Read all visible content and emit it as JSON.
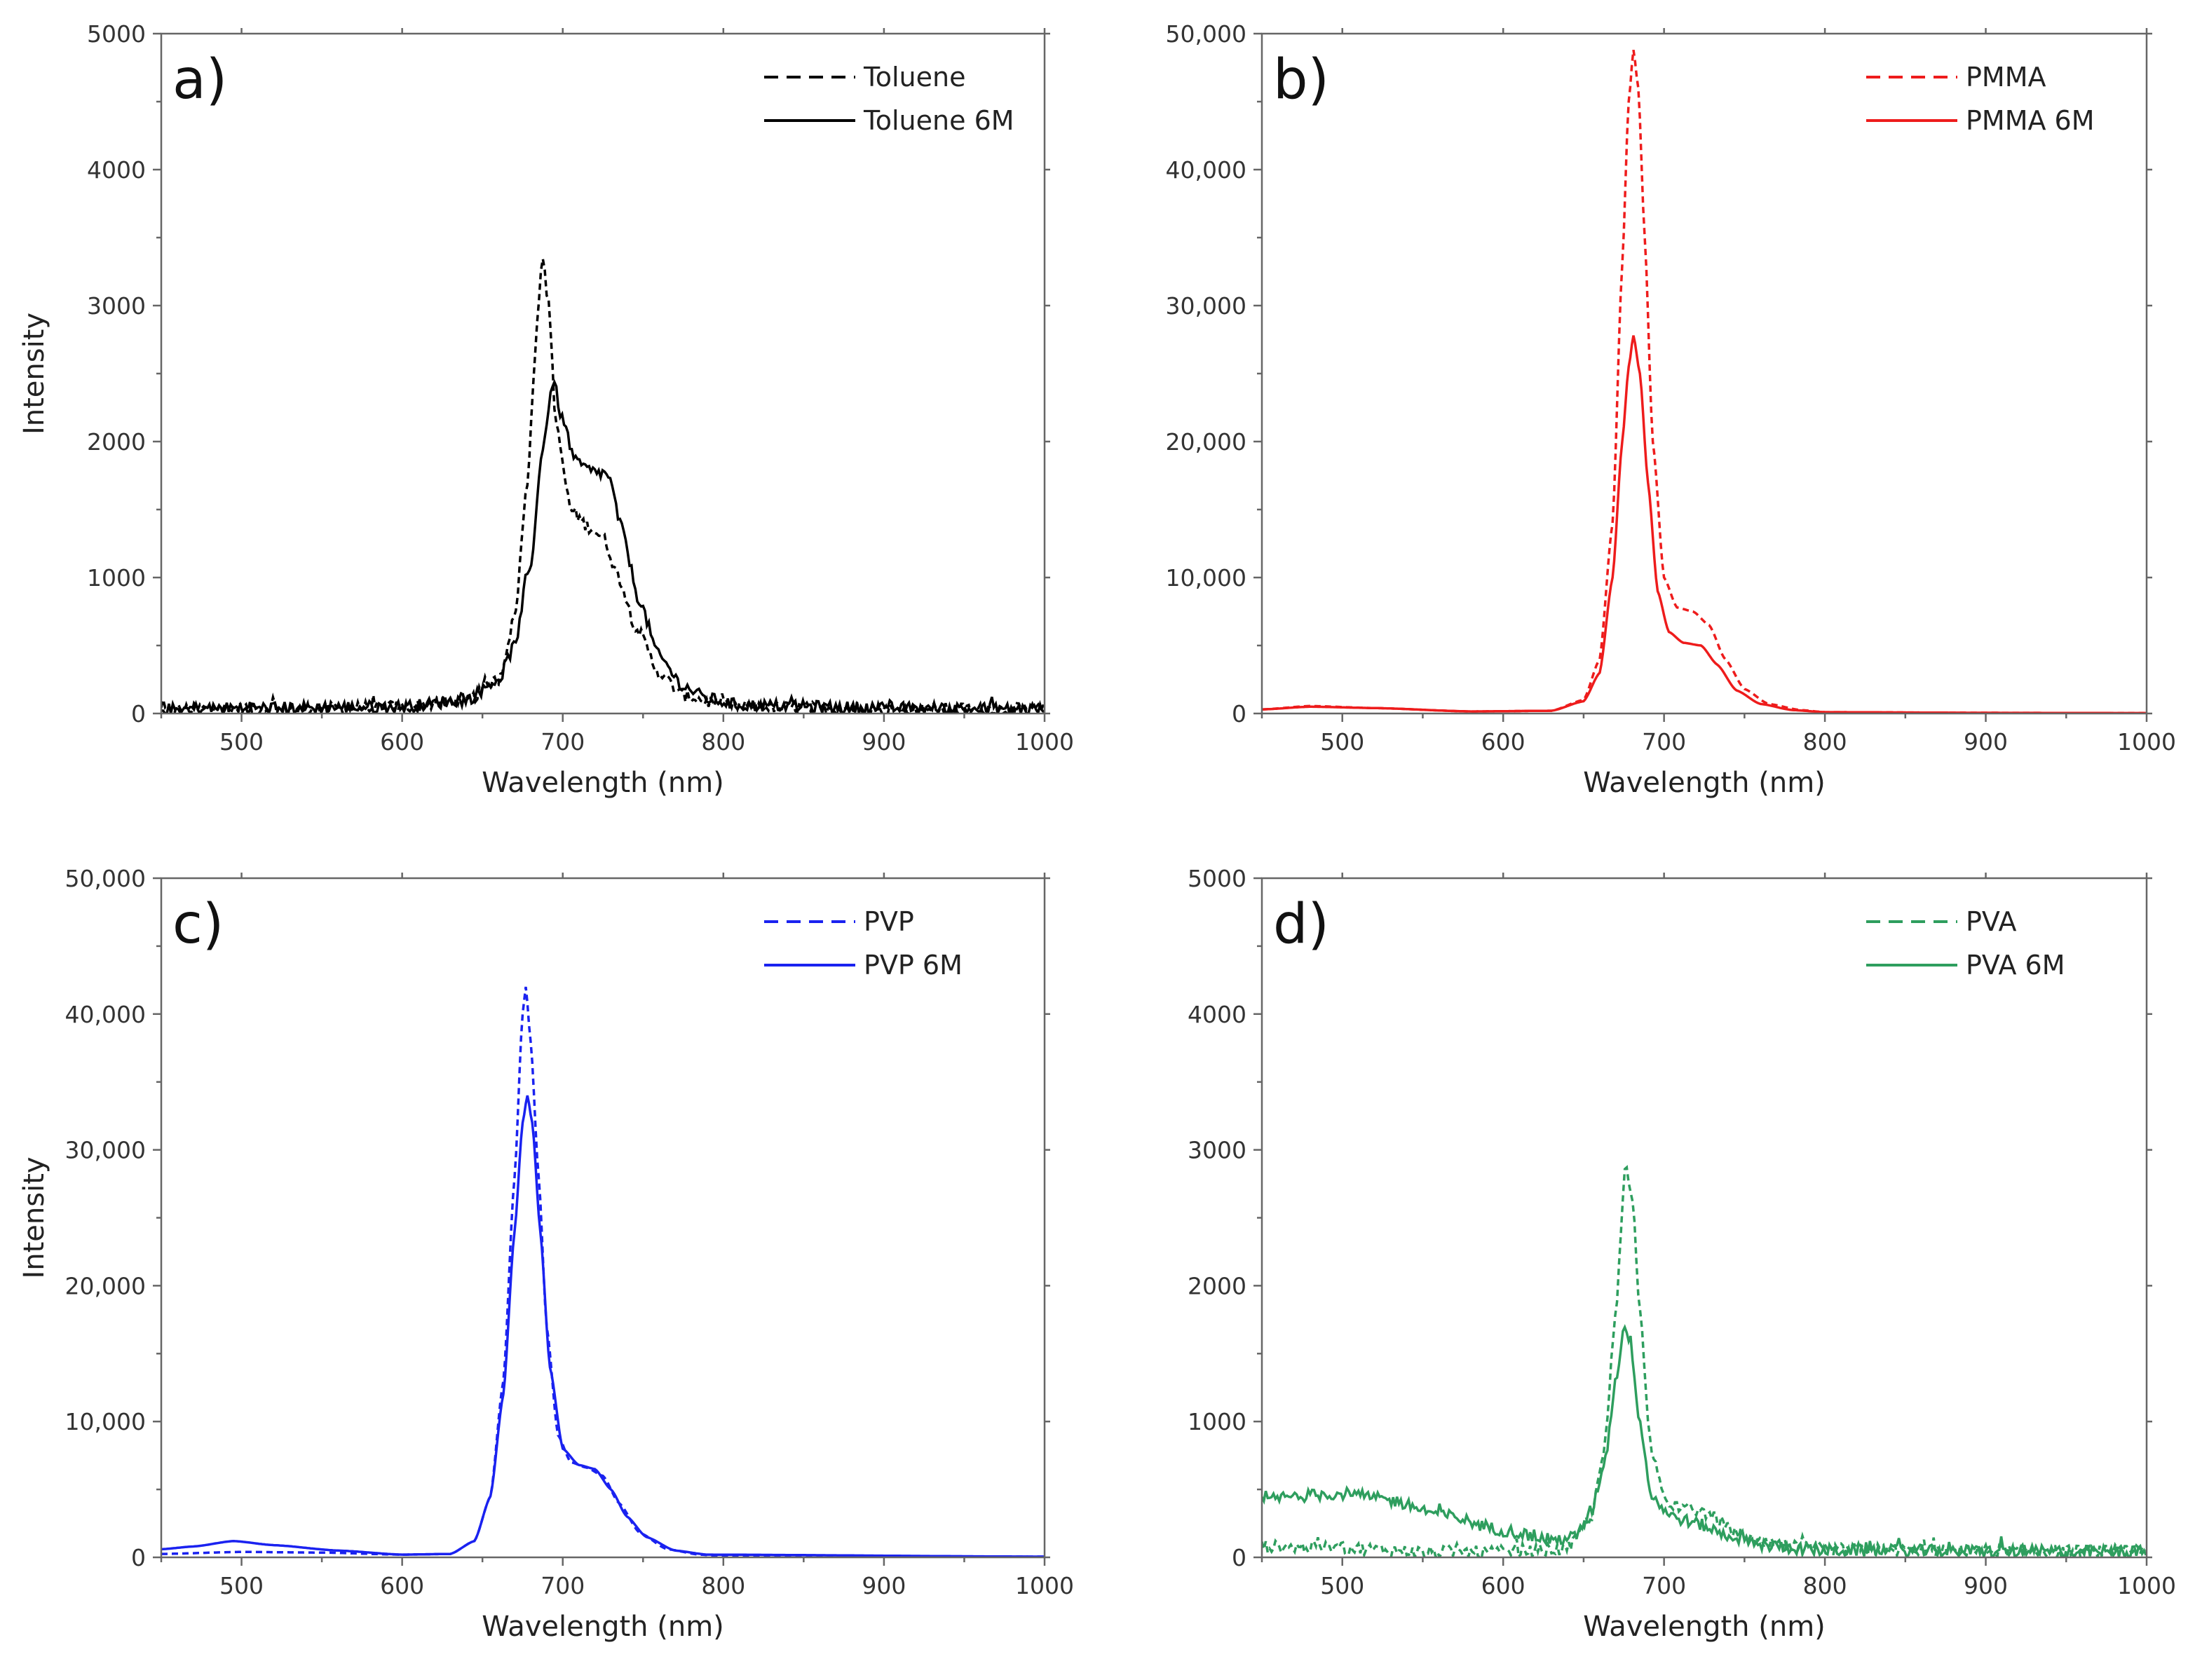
{
  "chart_data": [
    {
      "type": "line",
      "panel_label": "a)",
      "xlabel": "Wavelength (nm)",
      "ylabel": "Intensity",
      "xlim": [
        450,
        1000
      ],
      "ylim": [
        0,
        5000
      ],
      "xticks": [
        500,
        600,
        700,
        800,
        900,
        1000
      ],
      "xtick_labels": [
        "500",
        "600",
        "700",
        "800",
        "900",
        "1000"
      ],
      "yticks": [
        0,
        1000,
        2000,
        3000,
        4000,
        5000
      ],
      "ytick_labels": [
        "0",
        "1000",
        "2000",
        "3000",
        "4000",
        "5000"
      ],
      "legend_position": "top-right",
      "noise": 45,
      "series": [
        {
          "name": "Toluene",
          "color": "#000000",
          "dash": "dashed",
          "points": [
            [
              450,
              30
            ],
            [
              500,
              40
            ],
            [
              550,
              40
            ],
            [
              600,
              50
            ],
            [
              640,
              90
            ],
            [
              660,
              250
            ],
            [
              670,
              700
            ],
            [
              678,
              1700
            ],
            [
              683,
              2700
            ],
            [
              687,
              3350
            ],
            [
              691,
              3050
            ],
            [
              696,
              2100
            ],
            [
              705,
              1500
            ],
            [
              715,
              1380
            ],
            [
              725,
              1300
            ],
            [
              735,
              1000
            ],
            [
              745,
              650
            ],
            [
              760,
              300
            ],
            [
              775,
              130
            ],
            [
              800,
              60
            ],
            [
              850,
              40
            ],
            [
              900,
              35
            ],
            [
              1000,
              30
            ]
          ]
        },
        {
          "name": "Toluene 6M",
          "color": "#000000",
          "dash": "solid",
          "points": [
            [
              450,
              30
            ],
            [
              500,
              40
            ],
            [
              600,
              50
            ],
            [
              640,
              100
            ],
            [
              660,
              250
            ],
            [
              670,
              500
            ],
            [
              680,
              1100
            ],
            [
              688,
              2000
            ],
            [
              694,
              2450
            ],
            [
              700,
              2150
            ],
            [
              708,
              1850
            ],
            [
              718,
              1780
            ],
            [
              728,
              1760
            ],
            [
              737,
              1350
            ],
            [
              747,
              850
            ],
            [
              760,
              420
            ],
            [
              775,
              200
            ],
            [
              790,
              110
            ],
            [
              810,
              60
            ],
            [
              900,
              40
            ],
            [
              1000,
              30
            ]
          ]
        }
      ]
    },
    {
      "type": "line",
      "panel_label": "b)",
      "xlabel": "Wavelength (nm)",
      "ylabel": "",
      "xlim": [
        450,
        1000
      ],
      "ylim": [
        0,
        50000
      ],
      "xticks": [
        500,
        600,
        700,
        800,
        900,
        1000
      ],
      "xtick_labels": [
        "500",
        "600",
        "700",
        "800",
        "900",
        "1000"
      ],
      "yticks": [
        0,
        10000,
        20000,
        30000,
        40000,
        50000
      ],
      "ytick_labels": [
        "0",
        "10,000",
        "20,000",
        "30,000",
        "40,000",
        "50,000"
      ],
      "legend_position": "top-right",
      "noise": 0,
      "series": [
        {
          "name": "PMMA",
          "color": "#ee1c1c",
          "dash": "dashed",
          "points": [
            [
              450,
              300
            ],
            [
              480,
              550
            ],
            [
              520,
              400
            ],
            [
              580,
              150
            ],
            [
              630,
              200
            ],
            [
              650,
              1000
            ],
            [
              660,
              4000
            ],
            [
              668,
              14000
            ],
            [
              674,
              33000
            ],
            [
              678,
              45000
            ],
            [
              681,
              48800
            ],
            [
              684,
              46000
            ],
            [
              688,
              35000
            ],
            [
              693,
              20000
            ],
            [
              700,
              10000
            ],
            [
              708,
              7800
            ],
            [
              718,
              7500
            ],
            [
              728,
              6500
            ],
            [
              738,
              4000
            ],
            [
              750,
              1800
            ],
            [
              765,
              700
            ],
            [
              785,
              250
            ],
            [
              800,
              100
            ],
            [
              900,
              50
            ],
            [
              1000,
              30
            ]
          ]
        },
        {
          "name": "PMMA 6M",
          "color": "#ee1c1c",
          "dash": "solid",
          "points": [
            [
              450,
              300
            ],
            [
              480,
              500
            ],
            [
              520,
              400
            ],
            [
              580,
              150
            ],
            [
              630,
              200
            ],
            [
              650,
              900
            ],
            [
              660,
              3000
            ],
            [
              668,
              10000
            ],
            [
              674,
              20000
            ],
            [
              678,
              25500
            ],
            [
              681,
              27800
            ],
            [
              685,
              25000
            ],
            [
              690,
              17000
            ],
            [
              696,
              9000
            ],
            [
              703,
              6000
            ],
            [
              712,
              5200
            ],
            [
              723,
              5000
            ],
            [
              733,
              3600
            ],
            [
              745,
              1700
            ],
            [
              760,
              700
            ],
            [
              780,
              250
            ],
            [
              800,
              100
            ],
            [
              900,
              50
            ],
            [
              1000,
              30
            ]
          ]
        }
      ]
    },
    {
      "type": "line",
      "panel_label": "c)",
      "xlabel": "Wavelength (nm)",
      "ylabel": "Intensity",
      "xlim": [
        450,
        1000
      ],
      "ylim": [
        0,
        50000
      ],
      "xticks": [
        500,
        600,
        700,
        800,
        900,
        1000
      ],
      "xtick_labels": [
        "500",
        "600",
        "700",
        "800",
        "900",
        "1000"
      ],
      "yticks": [
        0,
        10000,
        20000,
        30000,
        40000,
        50000
      ],
      "ytick_labels": [
        "0",
        "10,000",
        "20,000",
        "30,000",
        "40,000",
        "50,000"
      ],
      "legend_position": "top-right",
      "noise": 0,
      "series": [
        {
          "name": "PVP",
          "color": "#1a22f0",
          "dash": "dashed",
          "points": [
            [
              450,
              250
            ],
            [
              500,
              400
            ],
            [
              550,
              350
            ],
            [
              600,
              200
            ],
            [
              630,
              250
            ],
            [
              645,
              1200
            ],
            [
              655,
              4500
            ],
            [
              663,
              13000
            ],
            [
              670,
              28000
            ],
            [
              675,
              40000
            ],
            [
              677,
              42000
            ],
            [
              680,
              38000
            ],
            [
              685,
              28000
            ],
            [
              690,
              17000
            ],
            [
              697,
              9000
            ],
            [
              705,
              7000
            ],
            [
              715,
              6600
            ],
            [
              725,
              6000
            ],
            [
              735,
              4000
            ],
            [
              748,
              1800
            ],
            [
              765,
              600
            ],
            [
              785,
              200
            ],
            [
              800,
              100
            ],
            [
              1000,
              50
            ]
          ]
        },
        {
          "name": "PVP 6M",
          "color": "#1a22f0",
          "dash": "solid",
          "points": [
            [
              450,
              600
            ],
            [
              470,
              800
            ],
            [
              495,
              1200
            ],
            [
              520,
              900
            ],
            [
              560,
              500
            ],
            [
              600,
              200
            ],
            [
              630,
              250
            ],
            [
              645,
              1200
            ],
            [
              655,
              4500
            ],
            [
              663,
              12000
            ],
            [
              670,
              24000
            ],
            [
              675,
              32000
            ],
            [
              678,
              34000
            ],
            [
              681,
              32000
            ],
            [
              686,
              24000
            ],
            [
              692,
              14000
            ],
            [
              700,
              8000
            ],
            [
              710,
              6800
            ],
            [
              720,
              6500
            ],
            [
              730,
              5000
            ],
            [
              740,
              3000
            ],
            [
              752,
              1500
            ],
            [
              770,
              500
            ],
            [
              790,
              200
            ],
            [
              1000,
              50
            ]
          ]
        }
      ]
    },
    {
      "type": "line",
      "panel_label": "d)",
      "xlabel": "Wavelength (nm)",
      "ylabel": "",
      "xlim": [
        450,
        1000
      ],
      "ylim": [
        0,
        5000
      ],
      "xticks": [
        500,
        600,
        700,
        800,
        900,
        1000
      ],
      "xtick_labels": [
        "500",
        "600",
        "700",
        "800",
        "900",
        "1000"
      ],
      "yticks": [
        0,
        1000,
        2000,
        3000,
        4000,
        5000
      ],
      "ytick_labels": [
        "0",
        "1000",
        "2000",
        "3000",
        "4000",
        "5000"
      ],
      "legend_position": "top-right",
      "noise": 45,
      "series": [
        {
          "name": "PVA",
          "color": "#2e9e5e",
          "dash": "dashed",
          "points": [
            [
              450,
              80
            ],
            [
              500,
              70
            ],
            [
              550,
              40
            ],
            [
              600,
              40
            ],
            [
              640,
              60
            ],
            [
              655,
              300
            ],
            [
              663,
              800
            ],
            [
              670,
              1800
            ],
            [
              676,
              2900
            ],
            [
              680,
              2700
            ],
            [
              685,
              1800
            ],
            [
              692,
              800
            ],
            [
              700,
              420
            ],
            [
              710,
              370
            ],
            [
              720,
              350
            ],
            [
              730,
              300
            ],
            [
              745,
              180
            ],
            [
              760,
              100
            ],
            [
              800,
              60
            ],
            [
              1000,
              40
            ]
          ]
        },
        {
          "name": "PVA 6M",
          "color": "#2e9e5e",
          "dash": "solid",
          "points": [
            [
              450,
              420
            ],
            [
              470,
              450
            ],
            [
              500,
              470
            ],
            [
              530,
              420
            ],
            [
              560,
              320
            ],
            [
              600,
              200
            ],
            [
              630,
              130
            ],
            [
              645,
              150
            ],
            [
              655,
              350
            ],
            [
              663,
              700
            ],
            [
              670,
              1300
            ],
            [
              675,
              1700
            ],
            [
              679,
              1600
            ],
            [
              685,
              1000
            ],
            [
              692,
              450
            ],
            [
              705,
              300
            ],
            [
              720,
              250
            ],
            [
              740,
              160
            ],
            [
              760,
              90
            ],
            [
              800,
              50
            ],
            [
              1000,
              40
            ]
          ]
        }
      ]
    }
  ]
}
